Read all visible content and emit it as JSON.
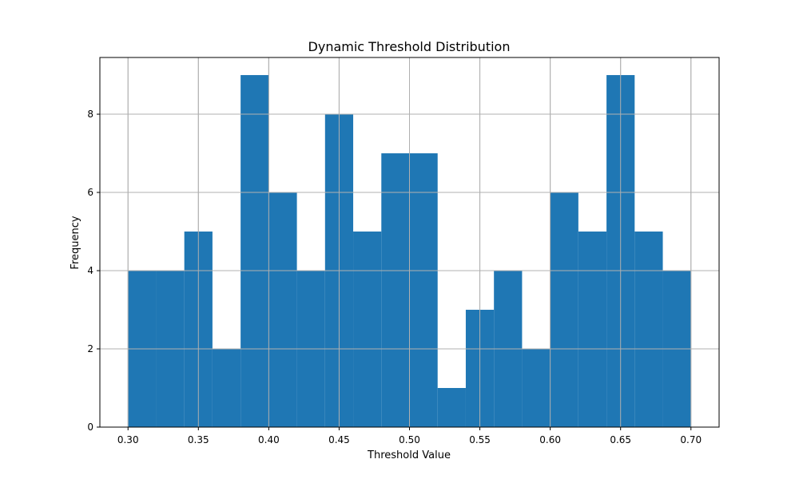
{
  "chart_data": {
    "type": "bar",
    "title": "Dynamic Threshold Distribution",
    "xlabel": "Threshold Value",
    "ylabel": "Frequency",
    "bins": [
      [
        0.3,
        0.32
      ],
      [
        0.32,
        0.34
      ],
      [
        0.34,
        0.36
      ],
      [
        0.36,
        0.38
      ],
      [
        0.38,
        0.4
      ],
      [
        0.4,
        0.42
      ],
      [
        0.42,
        0.44
      ],
      [
        0.44,
        0.46
      ],
      [
        0.46,
        0.48
      ],
      [
        0.48,
        0.5
      ],
      [
        0.5,
        0.52
      ],
      [
        0.52,
        0.54
      ],
      [
        0.54,
        0.56
      ],
      [
        0.56,
        0.58
      ],
      [
        0.58,
        0.6
      ],
      [
        0.6,
        0.62
      ],
      [
        0.62,
        0.64
      ],
      [
        0.64,
        0.66
      ],
      [
        0.66,
        0.68
      ],
      [
        0.68,
        0.7
      ]
    ],
    "values": [
      4,
      4,
      5,
      2,
      9,
      6,
      4,
      8,
      5,
      7,
      7,
      1,
      3,
      4,
      2,
      6,
      5,
      9,
      5,
      4
    ],
    "xlim": [
      0.28,
      0.72
    ],
    "ylim": [
      0,
      9.45
    ],
    "xticks": [
      0.3,
      0.35,
      0.4,
      0.45,
      0.5,
      0.55,
      0.6,
      0.65,
      0.7
    ],
    "xtick_labels": [
      "0.30",
      "0.35",
      "0.40",
      "0.45",
      "0.50",
      "0.55",
      "0.60",
      "0.65",
      "0.70"
    ],
    "yticks": [
      0,
      2,
      4,
      6,
      8
    ],
    "ytick_labels": [
      "0",
      "2",
      "4",
      "6",
      "8"
    ],
    "grid": true,
    "bar_color": "#1f77b4",
    "grid_color": "#b0b0b0"
  }
}
